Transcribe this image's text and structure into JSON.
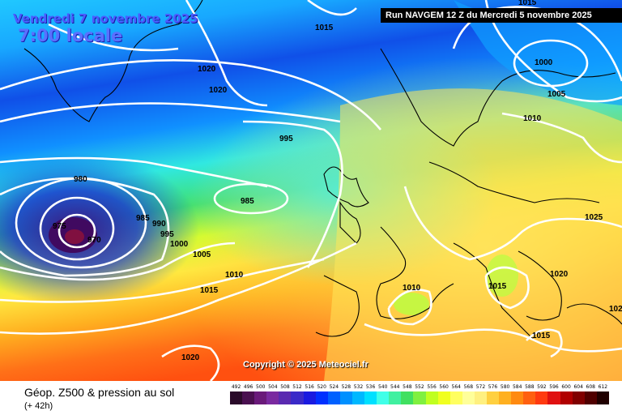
{
  "header": {
    "date_label": "Vendredi 7 novembre 2025",
    "time_label": "7:00 locale",
    "run_label": "Run NAVGEM 12 Z du Mercredi 5 novembre 2025"
  },
  "copyright": "Copyright © 2025 Meteociel.fr",
  "footer": {
    "title": "Géop. Z500 & pression au sol",
    "subtitle": "(+ 42h)"
  },
  "isobar_labels": [
    "1015",
    "1020",
    "1020",
    "1015",
    "1000",
    "1005",
    "1010",
    "995",
    "980",
    "985",
    "985",
    "990",
    "995",
    "1000",
    "1005",
    "1010",
    "975",
    "970",
    "1015",
    "1020",
    "1025",
    "1010",
    "1015",
    "1020",
    "1015",
    "102"
  ],
  "scale": {
    "labels": [
      "492",
      "496",
      "500",
      "504",
      "508",
      "512",
      "516",
      "520",
      "524",
      "528",
      "532",
      "536",
      "540",
      "544",
      "548",
      "552",
      "556",
      "560",
      "564",
      "568",
      "572",
      "576",
      "580",
      "584",
      "588",
      "592",
      "596",
      "600",
      "604",
      "608",
      "612"
    ],
    "colors": [
      "#2a0a2a",
      "#4a1050",
      "#6a1a7a",
      "#7a2aa0",
      "#5a2ab0",
      "#3a2ac8",
      "#1a1ae0",
      "#0030ff",
      "#0060ff",
      "#0090ff",
      "#00b8ff",
      "#00e0ff",
      "#40ffe8",
      "#40f0a0",
      "#40e060",
      "#80f040",
      "#c0ff20",
      "#f0ff20",
      "#ffff60",
      "#ffff9a",
      "#fff080",
      "#ffd040",
      "#ffb020",
      "#ff8a10",
      "#ff6010",
      "#ff3a10",
      "#e01010",
      "#b00000",
      "#800000",
      "#500000",
      "#200000"
    ]
  }
}
